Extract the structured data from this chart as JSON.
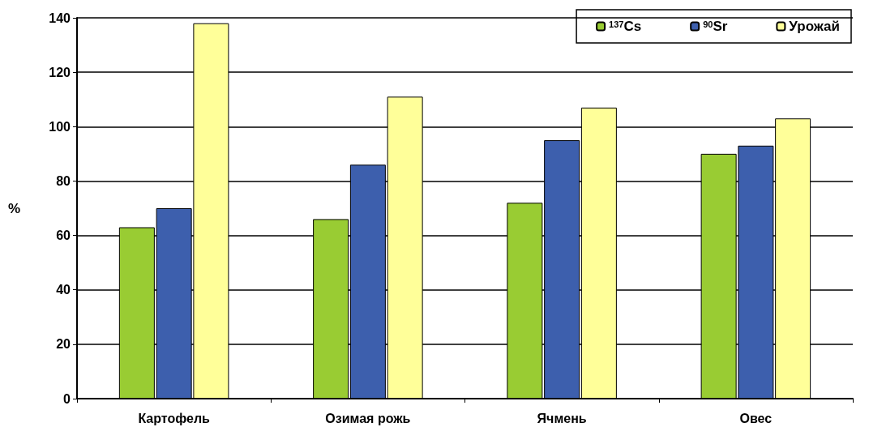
{
  "chart_data": {
    "type": "bar",
    "ylabel": "%",
    "categories": [
      "Картофель",
      "Озимая рожь",
      "Ячмень",
      "Овес"
    ],
    "series": [
      {
        "name": "$^{137}$Cs",
        "color": "#99cc33",
        "values": [
          63,
          66,
          72,
          90
        ]
      },
      {
        "name": "$^{90}$Sr",
        "color": "#3d5fad",
        "values": [
          70,
          86,
          95,
          93
        ]
      },
      {
        "name": "Урожай",
        "color": "#ffff99",
        "values": [
          138,
          111,
          107,
          103
        ]
      }
    ],
    "ylim": [
      0,
      140
    ],
    "yticks": [
      0,
      20,
      40,
      60,
      80,
      100,
      120,
      140
    ],
    "grid": "y",
    "legend": "top right"
  }
}
